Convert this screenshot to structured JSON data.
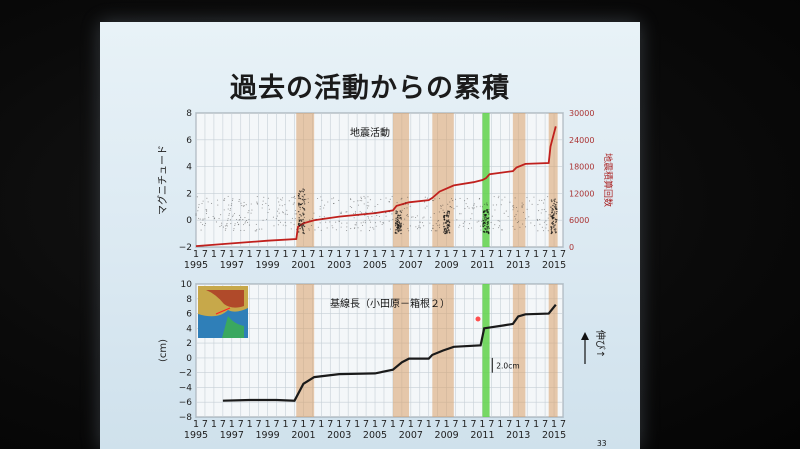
{
  "slide": {
    "title": "過去の活動からの累積",
    "page_number": "33"
  },
  "chart_data": [
    {
      "type": "line",
      "title": "地震活動",
      "ylabel": "マグニチュード",
      "y2label": "地震積算回数",
      "ylim": [
        -2,
        8
      ],
      "y2lim": [
        0,
        30000
      ],
      "y_ticks": [
        "8",
        "6",
        "4",
        "2",
        "0",
        "−2"
      ],
      "y2_ticks": [
        "30000",
        "24000",
        "18000",
        "12000",
        "6000",
        "0"
      ],
      "x_month_ticks": [
        "1",
        "7"
      ],
      "x_labels": [
        "1995",
        "1997",
        "1999",
        "2001",
        "2003",
        "2005",
        "2007",
        "2009",
        "2011",
        "2013",
        "2015"
      ],
      "xlim": [
        1995,
        2015.5
      ],
      "highlight_spans_orange": [
        [
          2000.6,
          2001.6
        ],
        [
          2006.0,
          2006.9
        ],
        [
          2008.2,
          2009.4
        ],
        [
          2012.7,
          2013.4
        ],
        [
          2014.7,
          2015.2
        ]
      ],
      "highlight_spans_green": [
        [
          2011.0,
          2011.4
        ]
      ],
      "series": [
        {
          "name": "地震積算回数",
          "color": "#c0201d",
          "x": [
            1995.0,
            1997.0,
            1999.0,
            2000.6,
            2000.7,
            2001.0,
            2001.6,
            2003.0,
            2005.0,
            2006.0,
            2006.2,
            2006.9,
            2008.0,
            2008.2,
            2008.6,
            2009.4,
            2010.5,
            2011.0,
            2011.2,
            2011.4,
            2012.7,
            2012.9,
            2013.4,
            2014.7,
            2014.8,
            2015.0,
            2015.1
          ],
          "values": [
            200,
            800,
            1400,
            1800,
            4500,
            5300,
            6000,
            6800,
            7600,
            8200,
            9200,
            10000,
            10500,
            11000,
            12400,
            13800,
            14500,
            15000,
            15400,
            16300,
            17000,
            17800,
            18600,
            18800,
            22500,
            25500,
            27000
          ]
        }
      ]
    },
    {
      "type": "line",
      "title": "基線長（小田原－箱根２）",
      "ylabel": "(cm)",
      "y2label": "伸び↑",
      "ylim": [
        -8,
        10
      ],
      "y_ticks": [
        "10",
        "8",
        "6",
        "4",
        "2",
        "0",
        "−2",
        "−4",
        "−6",
        "−8"
      ],
      "x_month_ticks": [
        "1",
        "7"
      ],
      "x_labels": [
        "1995",
        "1997",
        "1999",
        "2001",
        "2003",
        "2005",
        "2007",
        "2009",
        "2011",
        "2013",
        "2015"
      ],
      "xlim": [
        1995,
        2015.5
      ],
      "scale_annotation": "2.0cm",
      "highlight_spans_orange": [
        [
          2000.6,
          2001.6
        ],
        [
          2006.0,
          2006.9
        ],
        [
          2008.2,
          2009.4
        ],
        [
          2012.7,
          2013.4
        ],
        [
          2014.7,
          2015.2
        ]
      ],
      "highlight_spans_green": [
        [
          2011.0,
          2011.4
        ]
      ],
      "series": [
        {
          "name": "基線長",
          "color": "#1a1a1a",
          "x": [
            1996.5,
            1998.0,
            1999.5,
            2000.5,
            2001.0,
            2001.6,
            2003.0,
            2005.0,
            2006.0,
            2006.5,
            2006.9,
            2008.0,
            2008.2,
            2008.8,
            2009.4,
            2010.9,
            2011.1,
            2012.2,
            2012.7,
            2013.0,
            2013.4,
            2014.7,
            2014.9,
            2015.1
          ],
          "values": [
            -5.8,
            -5.7,
            -5.7,
            -5.8,
            -3.5,
            -2.6,
            -2.2,
            -2.1,
            -1.6,
            -0.6,
            -0.1,
            -0.1,
            0.4,
            1.0,
            1.5,
            1.7,
            4.0,
            4.4,
            4.6,
            5.6,
            5.9,
            6.0,
            6.6,
            7.2
          ]
        }
      ]
    }
  ]
}
